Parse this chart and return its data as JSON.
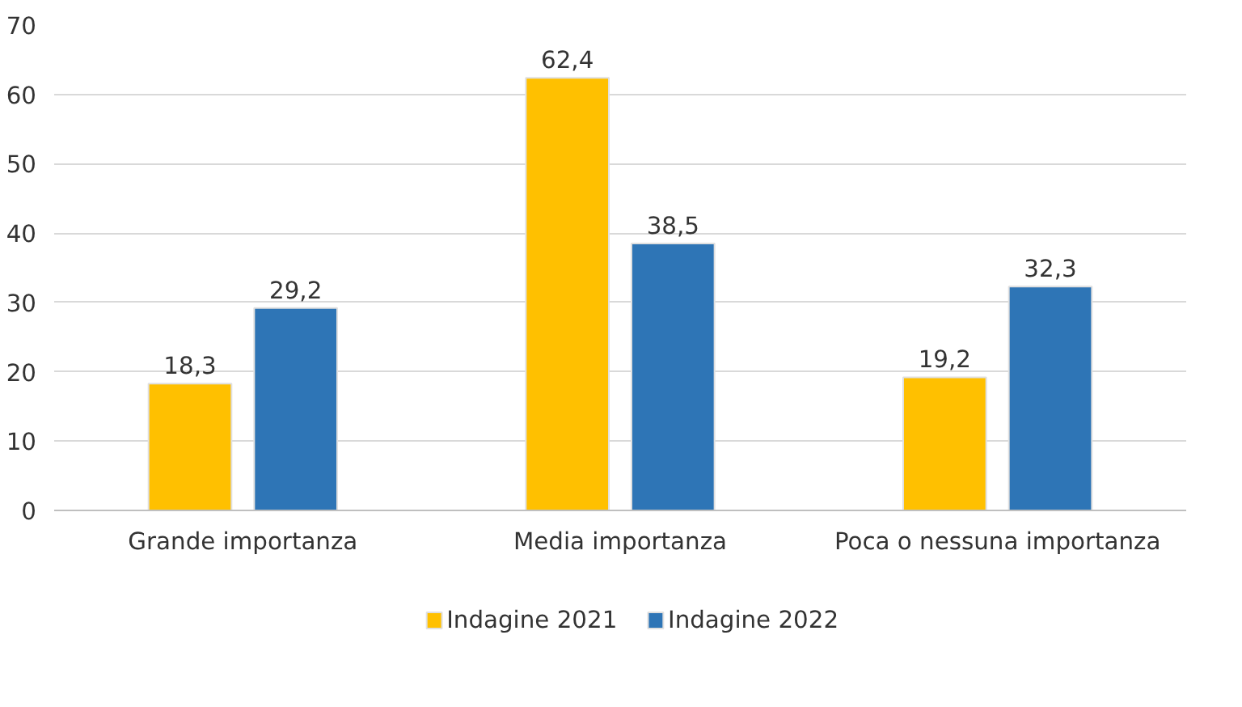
{
  "chart_data": {
    "type": "bar",
    "categories": [
      "Grande importanza",
      "Media importanza",
      "Poca o nessuna importanza"
    ],
    "series": [
      {
        "name": "Indagine 2021",
        "color": "#ffc000",
        "values": [
          18.3,
          62.4,
          19.2
        ],
        "value_labels": [
          "18,3",
          "62,4",
          "19,2"
        ]
      },
      {
        "name": "Indagine 2022",
        "color": "#2e75b6",
        "values": [
          29.2,
          38.5,
          32.3
        ],
        "value_labels": [
          "29,2",
          "38,5",
          "32,3"
        ]
      }
    ],
    "ylim": [
      0,
      70
    ],
    "yticks": [
      0,
      10,
      20,
      30,
      40,
      50,
      60,
      70
    ],
    "grid": "y",
    "legend": "bottom"
  }
}
